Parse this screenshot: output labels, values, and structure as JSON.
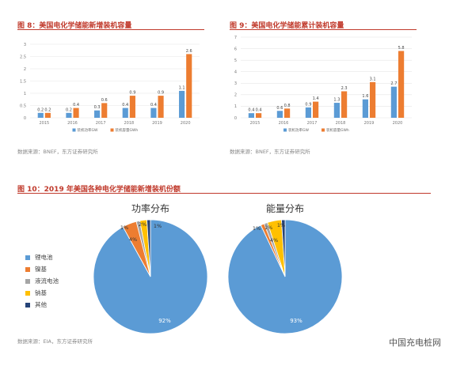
{
  "figures": {
    "fig8": {
      "title": "图 8：美国电化学储能新增装机容量",
      "source": "数据来源：BNEF，东方证券研究所"
    },
    "fig9": {
      "title": "图 9：美国电化学储能累计装机容量",
      "source": "数据来源：BNEF，东方证券研究所"
    },
    "fig10": {
      "title": "图 10：2019 年美国各种电化学储能新增装机份额",
      "source": "数据来源：EIA，东方证券研究所"
    }
  },
  "watermark": "中国充电桩网",
  "colors": {
    "blue": "#5b9bd5",
    "orange": "#ed7d31",
    "gray": "#a5a5a5",
    "yellow": "#ffc000",
    "navy": "#264478",
    "title_red": "#c0392b"
  },
  "chart_data": [
    {
      "type": "bar",
      "title": "图 8：美国电化学储能新增装机容量",
      "categories": [
        "2015",
        "2016",
        "2017",
        "2018",
        "2019",
        "2020"
      ],
      "ylim": [
        0,
        3
      ],
      "yticks": [
        "0",
        "0.5",
        "1",
        "1.5",
        "2",
        "2.5",
        "3"
      ],
      "series": [
        {
          "name": "装机功率GW",
          "color": "#5b9bd5",
          "values": [
            0.2,
            0.2,
            0.3,
            0.4,
            0.4,
            1.1
          ]
        },
        {
          "name": "装机容量GWh",
          "color": "#ed7d31",
          "values": [
            0.2,
            0.4,
            0.6,
            0.9,
            0.9,
            2.6
          ]
        }
      ],
      "legend": "bottom"
    },
    {
      "type": "bar",
      "title": "图 9：美国电化学储能累计装机容量",
      "categories": [
        "2015",
        "2016",
        "2017",
        "2018",
        "2019",
        "2020"
      ],
      "ylim": [
        0,
        7
      ],
      "yticks": [
        "0",
        "1",
        "2",
        "3",
        "4",
        "5",
        "6",
        "7"
      ],
      "series": [
        {
          "name": "装机功率GW",
          "color": "#5b9bd5",
          "values": [
            0.4,
            0.6,
            0.9,
            1.3,
            1.6,
            2.7
          ]
        },
        {
          "name": "装机容量GWh",
          "color": "#ed7d31",
          "values": [
            0.4,
            0.8,
            1.4,
            2.3,
            3.1,
            5.8
          ]
        }
      ],
      "legend": "bottom"
    },
    {
      "type": "pie",
      "title": "功率分布",
      "labels": [
        "锂电池",
        "镍基",
        "液流电池",
        "钠基",
        "其他"
      ],
      "values": [
        92,
        4,
        1,
        2,
        1
      ],
      "value_labels": [
        "92%",
        "4%",
        "1%",
        "2%",
        "1%"
      ],
      "colors": [
        "#5b9bd5",
        "#ed7d31",
        "#a5a5a5",
        "#ffc000",
        "#264478"
      ]
    },
    {
      "type": "pie",
      "title": "能量分布",
      "labels": [
        "锂电池",
        "镍基",
        "液流电池",
        "钠基",
        "其他"
      ],
      "values": [
        93,
        1,
        1,
        4,
        1
      ],
      "value_labels": [
        "93%",
        "1%",
        "1%",
        "4%",
        "1%"
      ],
      "colors": [
        "#5b9bd5",
        "#ed7d31",
        "#a5a5a5",
        "#ffc000",
        "#264478"
      ]
    }
  ]
}
